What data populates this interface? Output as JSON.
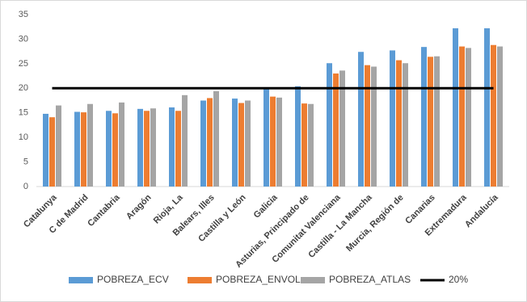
{
  "chart_data": {
    "type": "bar",
    "categories": [
      "Catalunya",
      "C de Madrid",
      "Cantabria",
      "Aragón",
      "Rioja, La",
      "Balears, Illes",
      "Castilla y León",
      "Galicia",
      "Asturias, Principado de",
      "Comunitat Valenciana",
      "Castilla - La Mancha",
      "Murcia, Región de",
      "Canarias",
      "Extremadura",
      "Andalucía"
    ],
    "series": [
      {
        "name": "POBREZA_ECV",
        "color": "#5b9bd5",
        "values": [
          14.8,
          15.2,
          15.4,
          15.8,
          16.1,
          17.5,
          17.9,
          19.9,
          20.4,
          25.1,
          27.4,
          27.7,
          28.4,
          32.2,
          32.2
        ]
      },
      {
        "name": "POBREZA_ENVOL",
        "color": "#ed7d31",
        "values": [
          14.1,
          15.1,
          14.9,
          15.4,
          15.4,
          18.0,
          17.0,
          18.3,
          16.9,
          23.0,
          24.7,
          25.7,
          26.4,
          28.5,
          28.8
        ]
      },
      {
        "name": "POBREZA_ATLAS",
        "color": "#a5a5a5",
        "values": [
          16.5,
          16.8,
          17.1,
          15.9,
          18.6,
          19.4,
          17.5,
          18.1,
          16.8,
          23.6,
          24.4,
          25.1,
          26.5,
          28.2,
          28.5
        ]
      },
      {
        "name": "20%",
        "type": "line",
        "color": "#000000",
        "values": [
          20,
          20,
          20,
          20,
          20,
          20,
          20,
          20,
          20,
          20,
          20,
          20,
          20,
          20,
          20
        ]
      }
    ],
    "ylim": [
      0,
      35
    ],
    "yticks": [
      0,
      5,
      10,
      15,
      20,
      25,
      30,
      35
    ],
    "grid": false,
    "legend": "bottom"
  }
}
